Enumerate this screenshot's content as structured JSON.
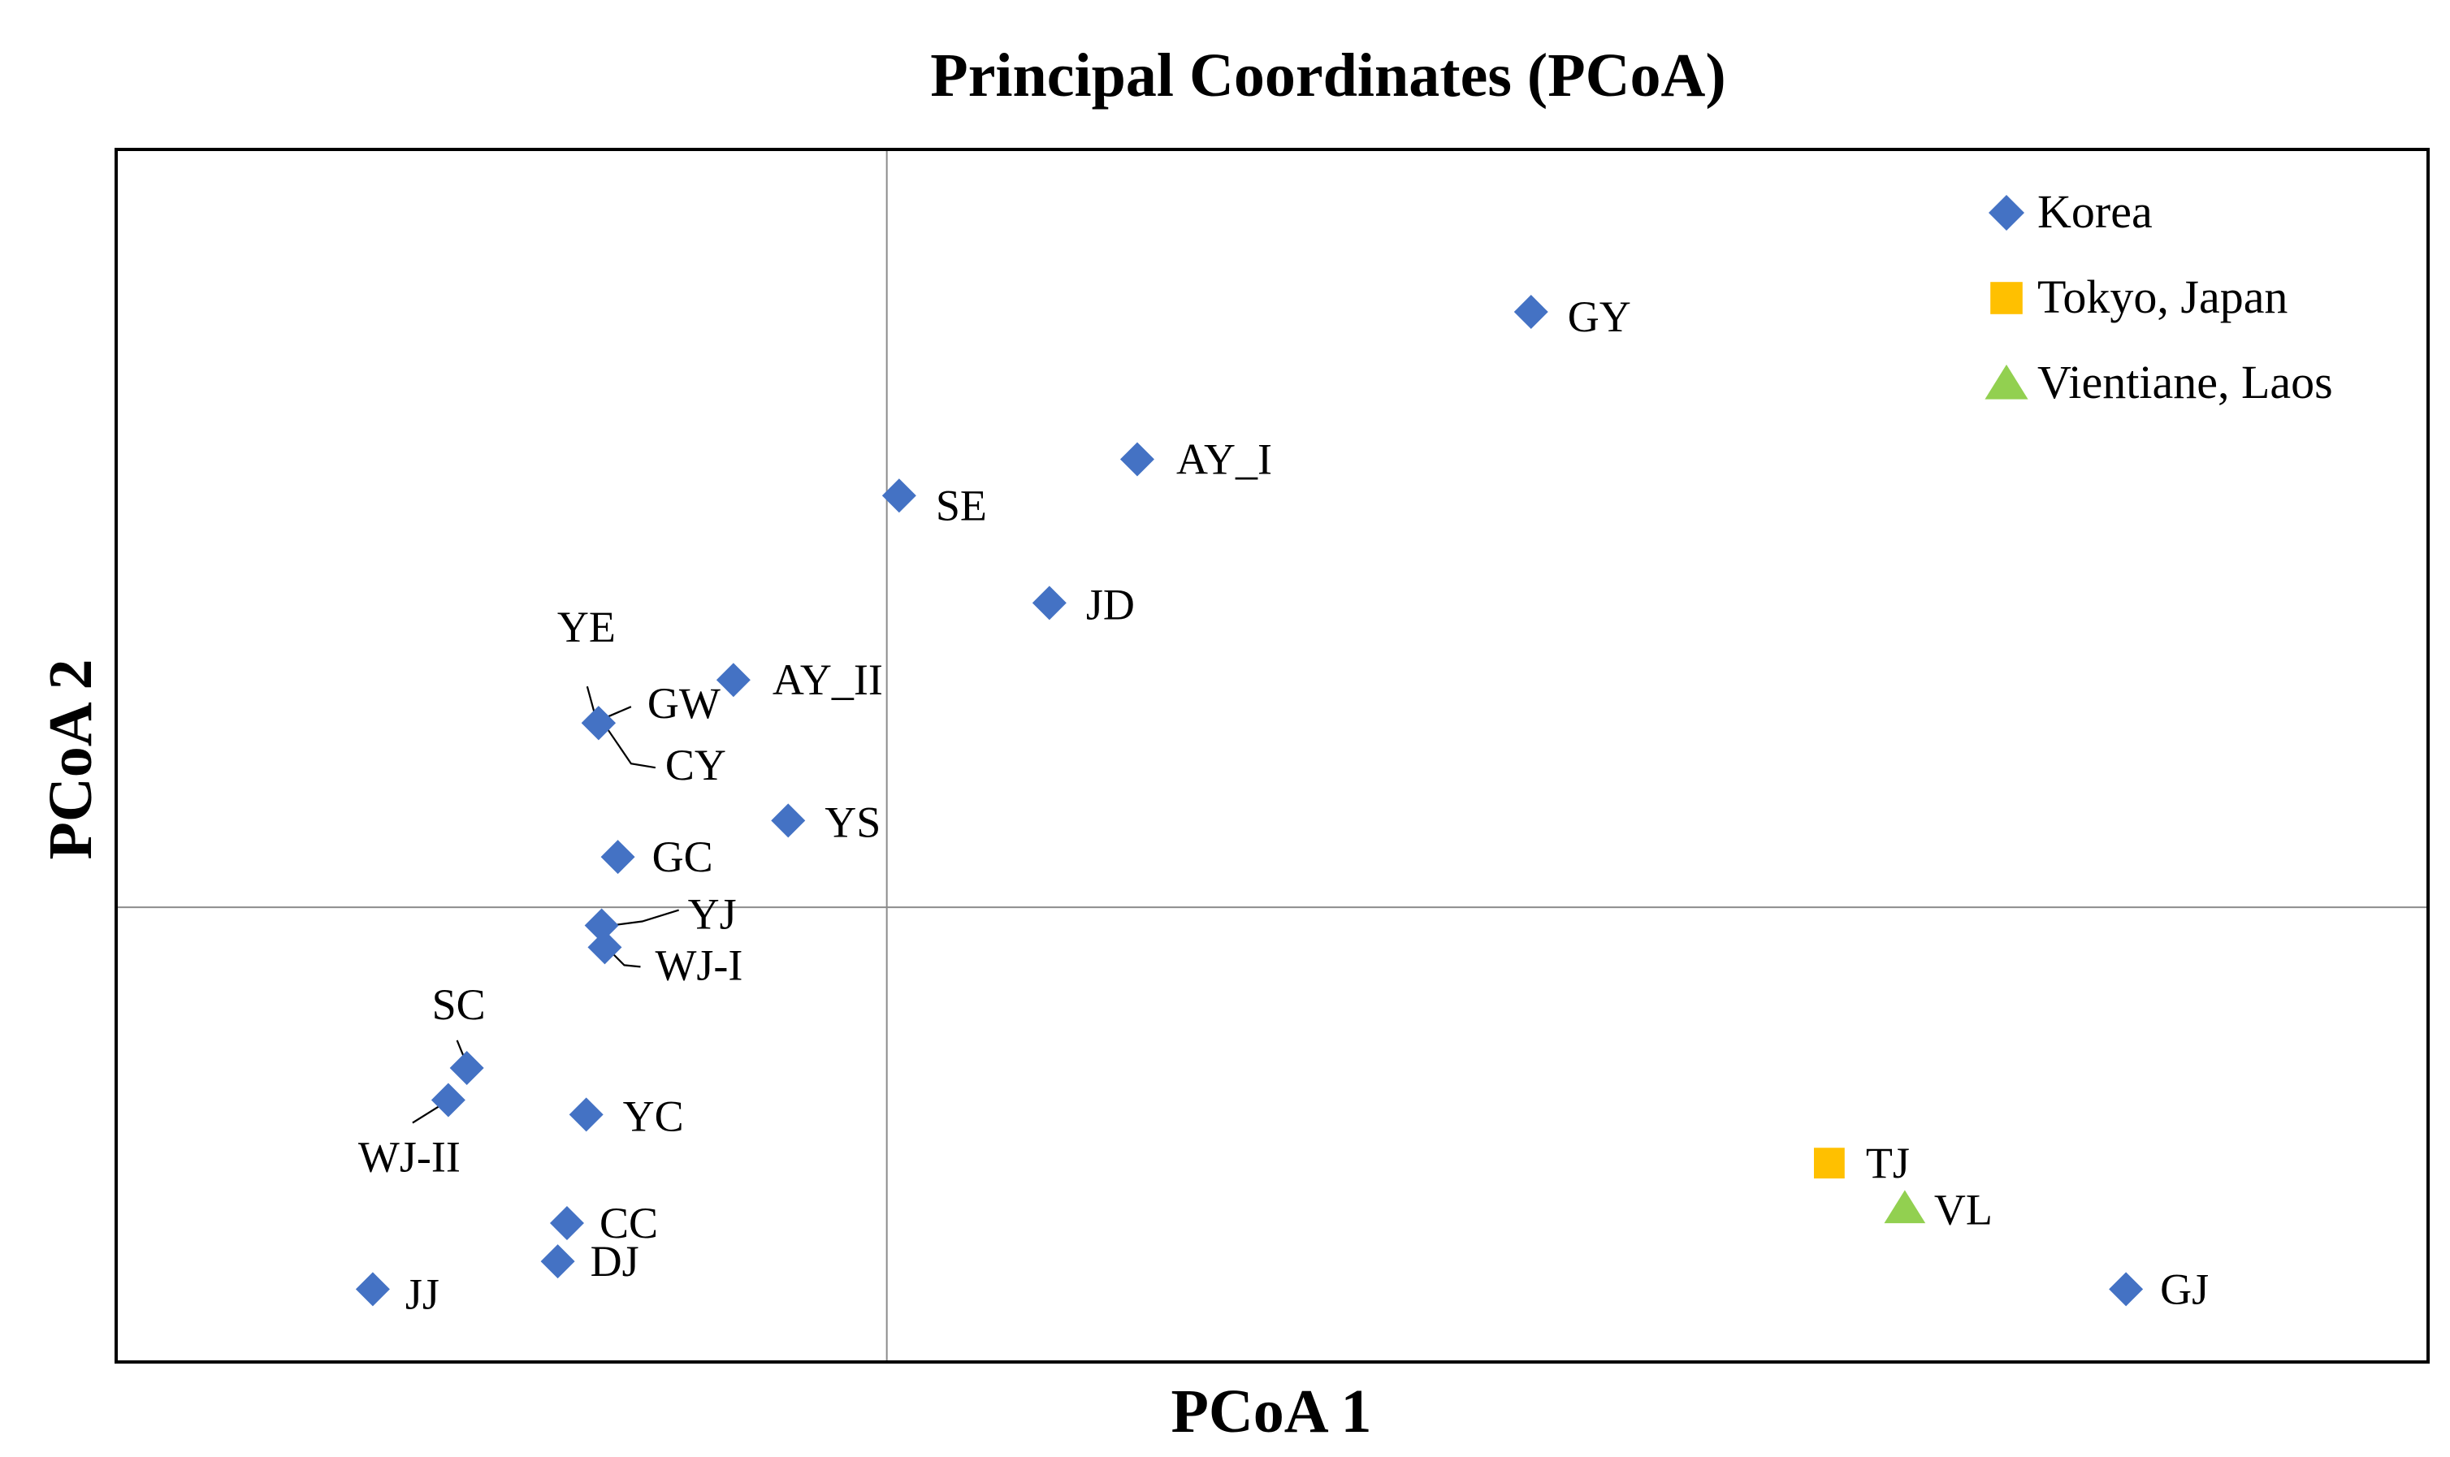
{
  "chart_data": {
    "type": "scatter",
    "title": "Principal Coordinates (PCoA)",
    "xlabel": "PCoA 1",
    "ylabel": "PCoA 2",
    "xlim": [
      -1.0,
      2.0
    ],
    "ylim": [
      -0.75,
      1.25
    ],
    "grid": false,
    "zero_lines": true,
    "legend_position": "top-right",
    "series": [
      {
        "name": "Korea",
        "marker": "diamond",
        "color": "#4472C4",
        "points": [
          {
            "label": "GY",
            "x": 0.836,
            "y": 0.982
          },
          {
            "label": "AY_I",
            "x": 0.325,
            "y": 0.739
          },
          {
            "label": "SE",
            "x": 0.016,
            "y": 0.679
          },
          {
            "label": "JD",
            "x": 0.211,
            "y": 0.502
          },
          {
            "label": "AY_II",
            "x": -0.199,
            "y": 0.375
          },
          {
            "label": "YE",
            "x": -0.374,
            "y": 0.304
          },
          {
            "label": "GW",
            "x": -0.374,
            "y": 0.304
          },
          {
            "label": "CY",
            "x": -0.374,
            "y": 0.304
          },
          {
            "label": "YS",
            "x": -0.128,
            "y": 0.143
          },
          {
            "label": "GC",
            "x": -0.349,
            "y": 0.083
          },
          {
            "label": "YJ",
            "x": -0.37,
            "y": -0.03
          },
          {
            "label": "WJ-I",
            "x": -0.366,
            "y": -0.066
          },
          {
            "label": "SC",
            "x": -0.545,
            "y": -0.265
          },
          {
            "label": "WJ-II",
            "x": -0.569,
            "y": -0.318
          },
          {
            "label": "YC",
            "x": -0.39,
            "y": -0.342
          },
          {
            "label": "CC",
            "x": -0.415,
            "y": -0.521
          },
          {
            "label": "DJ",
            "x": -0.427,
            "y": -0.584
          },
          {
            "label": "JJ",
            "x": -0.667,
            "y": -0.63
          },
          {
            "label": "GJ",
            "x": 1.608,
            "y": -0.63
          }
        ]
      },
      {
        "name": "Tokyo, Japan",
        "marker": "square",
        "color": "#FFC000",
        "points": [
          {
            "label": "TJ",
            "x": 1.223,
            "y": -0.422
          }
        ]
      },
      {
        "name": "Vientiane, Laos",
        "marker": "triangle",
        "color": "#92D050",
        "points": [
          {
            "label": "VL",
            "x": 1.321,
            "y": -0.496
          }
        ]
      }
    ]
  }
}
